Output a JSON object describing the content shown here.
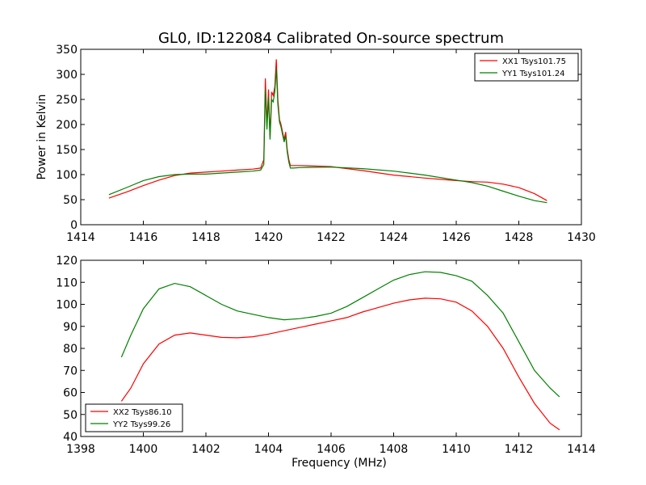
{
  "figure_title": "GL0, ID:122084 Calibrated On-source spectrum",
  "colors": {
    "xx": "#ff0000",
    "yy": "#008000"
  },
  "chart_data": [
    {
      "type": "line",
      "title": "GL0, ID:122084 Calibrated On-source spectrum",
      "xlabel": "",
      "ylabel": "Power in Kelvin",
      "xlim": [
        1414,
        1430
      ],
      "ylim": [
        0,
        350
      ],
      "xticks": [
        "1414",
        "1416",
        "1418",
        "1420",
        "1422",
        "1424",
        "1426",
        "1428",
        "1430"
      ],
      "yticks": [
        "0",
        "50",
        "100",
        "150",
        "200",
        "250",
        "300",
        "350"
      ],
      "legend_placement": "top-right",
      "grid": false,
      "series": [
        {
          "name": "XX1 Tsys101.75",
          "color": "#ff0000",
          "x": [
            1414.9,
            1415.5,
            1416,
            1416.5,
            1417,
            1417.5,
            1418,
            1418.5,
            1419,
            1419.5,
            1419.75,
            1419.85,
            1419.9,
            1419.95,
            1420.0,
            1420.05,
            1420.1,
            1420.15,
            1420.2,
            1420.25,
            1420.3,
            1420.35,
            1420.4,
            1420.45,
            1420.5,
            1420.55,
            1420.6,
            1420.65,
            1420.7,
            1420.8,
            1421,
            1422,
            1423,
            1424,
            1425,
            1426,
            1426.5,
            1427,
            1427.5,
            1428,
            1428.5,
            1428.9
          ],
          "y": [
            53,
            66,
            78,
            89,
            98,
            103,
            105,
            107,
            109,
            111,
            113,
            130,
            292,
            200,
            270,
            175,
            265,
            258,
            275,
            330,
            250,
            210,
            200,
            185,
            170,
            185,
            150,
            130,
            118,
            118,
            118,
            116,
            108,
            99,
            93,
            88,
            86,
            85,
            81,
            74,
            62,
            48
          ]
        },
        {
          "name": "YY1 Tsys101.24",
          "color": "#008000",
          "x": [
            1414.9,
            1415.5,
            1416,
            1416.5,
            1417,
            1417.5,
            1418,
            1418.5,
            1419,
            1419.5,
            1419.75,
            1419.85,
            1419.9,
            1419.95,
            1420.0,
            1420.05,
            1420.1,
            1420.15,
            1420.2,
            1420.25,
            1420.3,
            1420.35,
            1420.4,
            1420.45,
            1420.5,
            1420.55,
            1420.6,
            1420.65,
            1420.7,
            1420.8,
            1421,
            1422,
            1423,
            1424,
            1425,
            1426,
            1426.5,
            1427,
            1427.5,
            1428,
            1428.5,
            1428.9
          ],
          "y": [
            60,
            75,
            88,
            96,
            100,
            101,
            101,
            103,
            105,
            107,
            109,
            120,
            270,
            190,
            255,
            170,
            250,
            245,
            265,
            312,
            240,
            205,
            195,
            180,
            165,
            178,
            145,
            125,
            113,
            113,
            114,
            115,
            112,
            107,
            99,
            89,
            84,
            77,
            67,
            57,
            48,
            44
          ]
        }
      ]
    },
    {
      "type": "line",
      "title": "",
      "xlabel": "Frequency (MHz)",
      "ylabel": "",
      "xlim": [
        1398,
        1414
      ],
      "ylim": [
        40,
        120
      ],
      "xticks": [
        "1398",
        "1400",
        "1402",
        "1404",
        "1406",
        "1408",
        "1410",
        "1412",
        "1414"
      ],
      "yticks": [
        "40",
        "50",
        "60",
        "70",
        "80",
        "90",
        "100",
        "110",
        "120"
      ],
      "legend_placement": "bottom-left",
      "grid": false,
      "series": [
        {
          "name": "XX2 Tsys86.10",
          "color": "#ff0000",
          "x": [
            1399.3,
            1399.6,
            1400,
            1400.5,
            1401,
            1401.5,
            1402,
            1402.5,
            1403,
            1403.5,
            1404,
            1404.5,
            1405,
            1405.5,
            1406,
            1406.5,
            1407,
            1407.5,
            1408,
            1408.5,
            1409,
            1409.5,
            1410,
            1410.5,
            1411,
            1411.5,
            1412,
            1412.5,
            1413,
            1413.3
          ],
          "y": [
            56,
            62,
            73,
            82,
            86,
            87,
            86,
            85,
            84.8,
            85.3,
            86.5,
            88,
            89.5,
            91,
            92.5,
            94,
            96.5,
            98.5,
            100.5,
            102,
            102.8,
            102.5,
            101,
            97,
            90,
            80,
            67,
            55,
            46,
            43
          ]
        },
        {
          "name": "YY2 Tsys99.26",
          "color": "#008000",
          "x": [
            1399.3,
            1399.6,
            1400,
            1400.5,
            1401,
            1401.5,
            1402,
            1402.5,
            1403,
            1403.5,
            1404,
            1404.5,
            1405,
            1405.5,
            1406,
            1406.5,
            1407,
            1407.5,
            1408,
            1408.5,
            1409,
            1409.5,
            1410,
            1410.5,
            1411,
            1411.5,
            1412,
            1412.5,
            1413,
            1413.3
          ],
          "y": [
            76,
            86,
            98,
            107,
            109.5,
            108,
            104,
            100,
            97,
            95.5,
            94,
            93,
            93.5,
            94.5,
            96,
            99,
            103,
            107,
            111,
            113.5,
            114.8,
            114.5,
            113,
            110.5,
            104,
            96,
            83,
            70,
            62,
            58
          ]
        }
      ]
    }
  ]
}
